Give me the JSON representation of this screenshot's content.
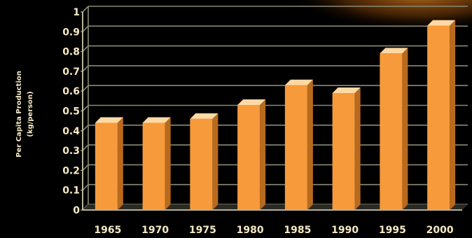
{
  "chart_data": {
    "type": "bar",
    "categories": [
      "1965",
      "1970",
      "1975",
      "1980",
      "1985",
      "1990",
      "1995",
      "2000"
    ],
    "values": [
      0.44,
      0.44,
      0.46,
      0.53,
      0.63,
      0.59,
      0.79,
      0.93
    ],
    "ylabel_line1": "Per Capita Production",
    "ylabel_line2": "(kg/person)",
    "ylim": [
      0,
      1
    ],
    "yticks": [
      "0",
      "0.1",
      "0.2",
      "0.3",
      "0.4",
      "0.5",
      "0.6",
      "0.7",
      "0.8",
      "0.9",
      "1"
    ],
    "grid": true,
    "legend": "none",
    "colors": {
      "bar_front": "#f79a3c",
      "bar_side": "#b86a1d",
      "bar_top": "#ffd9a3",
      "gridline": "#8a8a74",
      "text": "#f6e9c4",
      "background": "#000000"
    }
  }
}
